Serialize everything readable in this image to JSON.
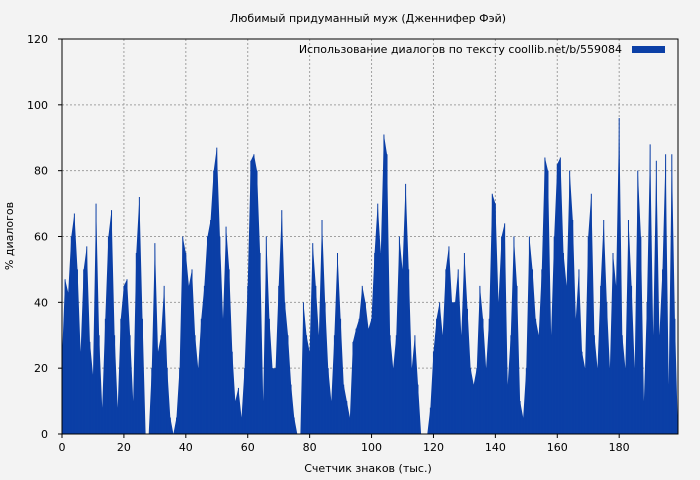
{
  "chart_data": {
    "type": "area",
    "title": "Любимый придуманный муж (Дженнифер Фэй)",
    "xlabel": "Счетчик знаков (тыс.)",
    "ylabel": "% диалогов",
    "xlim": [
      0,
      199
    ],
    "ylim": [
      0,
      120
    ],
    "x_ticks": [
      0,
      20,
      40,
      60,
      80,
      100,
      120,
      140,
      160,
      180
    ],
    "y_ticks": [
      0,
      20,
      40,
      60,
      80,
      100,
      120
    ],
    "x_tick_labels": [
      "0",
      "20",
      "40",
      "60",
      "80",
      "100",
      "120",
      "140",
      "160",
      "180"
    ],
    "y_tick_labels": [
      "0",
      "20",
      "40",
      "60",
      "80",
      "100",
      "120"
    ],
    "grid": true,
    "legend_position": "top-right",
    "series": [
      {
        "name": "Использование диалогов по тексту  coollib.net/b/559084",
        "color": "#0b3fa6",
        "x": [
          0,
          1,
          2,
          3,
          4,
          5,
          6,
          7,
          8,
          9,
          10,
          11,
          12,
          13,
          14,
          15,
          16,
          17,
          18,
          19,
          20,
          21,
          22,
          23,
          24,
          25,
          26,
          27,
          28,
          29,
          30,
          31,
          32,
          33,
          34,
          35,
          36,
          37,
          38,
          39,
          40,
          41,
          42,
          43,
          44,
          45,
          46,
          47,
          48,
          49,
          50,
          51,
          52,
          53,
          54,
          55,
          56,
          57,
          58,
          59,
          60,
          61,
          62,
          63,
          64,
          65,
          66,
          67,
          68,
          69,
          70,
          71,
          72,
          73,
          74,
          75,
          76,
          77,
          78,
          79,
          80,
          81,
          82,
          83,
          84,
          85,
          86,
          87,
          88,
          89,
          90,
          91,
          92,
          93,
          94,
          95,
          96,
          97,
          98,
          99,
          100,
          101,
          102,
          103,
          104,
          105,
          106,
          107,
          108,
          109,
          110,
          111,
          112,
          113,
          114,
          115,
          116,
          117,
          118,
          119,
          120,
          121,
          122,
          123,
          124,
          125,
          126,
          127,
          128,
          129,
          130,
          131,
          132,
          133,
          134,
          135,
          136,
          137,
          138,
          139,
          140,
          141,
          142,
          143,
          144,
          145,
          146,
          147,
          148,
          149,
          150,
          151,
          152,
          153,
          154,
          155,
          156,
          157,
          158,
          159,
          160,
          161,
          162,
          163,
          164,
          165,
          166,
          167,
          168,
          169,
          170,
          171,
          172,
          173,
          174,
          175,
          176,
          177,
          178,
          179,
          180,
          181,
          182,
          183,
          184,
          185,
          186,
          187,
          188,
          189,
          190,
          191,
          192,
          193,
          194,
          195,
          196,
          197,
          198,
          199
        ],
        "values": [
          23,
          47,
          43,
          60,
          67,
          50,
          25,
          50,
          57,
          28,
          18,
          70,
          30,
          8,
          35,
          60,
          68,
          30,
          8,
          35,
          45,
          47,
          30,
          10,
          55,
          72,
          35,
          0,
          0,
          20,
          58,
          25,
          30,
          45,
          20,
          5,
          0,
          5,
          20,
          60,
          55,
          45,
          50,
          30,
          20,
          35,
          45,
          60,
          65,
          80,
          87,
          60,
          35,
          63,
          50,
          25,
          10,
          14,
          5,
          20,
          45,
          83,
          85,
          80,
          55,
          10,
          60,
          35,
          20,
          20,
          45,
          68,
          40,
          30,
          15,
          5,
          0,
          0,
          40,
          30,
          25,
          58,
          45,
          30,
          65,
          40,
          20,
          10,
          30,
          55,
          35,
          15,
          10,
          5,
          28,
          32,
          35,
          45,
          40,
          32,
          35,
          55,
          70,
          55,
          91,
          85,
          30,
          20,
          30,
          60,
          50,
          76,
          50,
          20,
          30,
          15,
          0,
          0,
          0,
          8,
          25,
          35,
          40,
          30,
          50,
          57,
          40,
          40,
          50,
          30,
          55,
          38,
          20,
          15,
          20,
          45,
          35,
          20,
          35,
          73,
          70,
          40,
          60,
          64,
          15,
          30,
          60,
          45,
          10,
          5,
          20,
          60,
          50,
          35,
          30,
          50,
          84,
          80,
          30,
          60,
          82,
          84,
          55,
          45,
          80,
          65,
          35,
          50,
          25,
          20,
          60,
          73,
          30,
          20,
          45,
          65,
          40,
          20,
          55,
          45,
          96,
          30,
          20,
          65,
          45,
          20,
          80,
          60,
          10,
          40,
          88,
          30,
          83,
          30,
          50,
          85,
          15,
          85,
          35,
          0
        ]
      }
    ]
  }
}
